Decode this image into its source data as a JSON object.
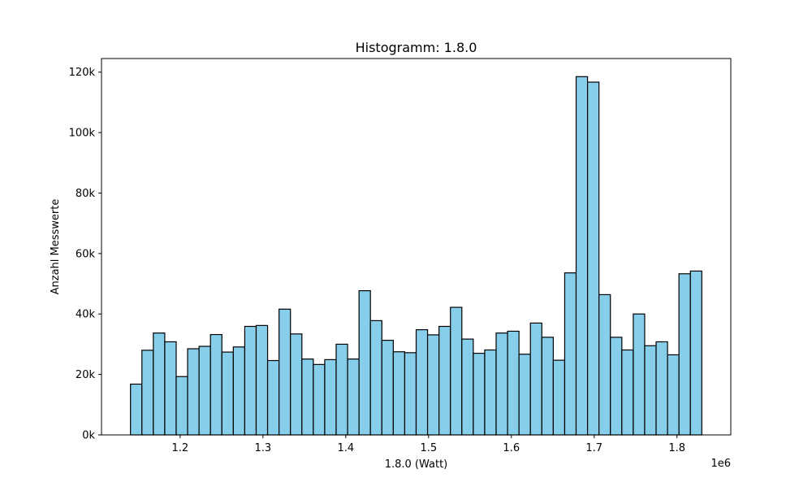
{
  "chart_data": {
    "type": "bar",
    "title": "Histogramm: 1.8.0",
    "xlabel": "1.8.0 (Watt)",
    "ylabel": "Anzahl Messwerte",
    "x_offset_label": "1e6",
    "x_scale": 1000000,
    "xlim": [
      1105000,
      1865000
    ],
    "ylim": [
      0,
      124500
    ],
    "x_ticks": [
      1.2,
      1.3,
      1.4,
      1.5,
      1.6,
      1.7,
      1.8
    ],
    "x_tick_labels": [
      "1.2",
      "1.3",
      "1.4",
      "1.5",
      "1.6",
      "1.7",
      "1.8"
    ],
    "y_ticks": [
      0,
      20000,
      40000,
      60000,
      80000,
      100000,
      120000
    ],
    "y_tick_labels": [
      "0k",
      "20k",
      "40k",
      "60k",
      "80k",
      "100k",
      "120k"
    ],
    "bar_color": "#87ceeb",
    "edge_color": "#000000",
    "grid": false,
    "legend": "none",
    "bin_start": 1140000,
    "bin_width": 13800,
    "values": [
      16800,
      28000,
      33700,
      30800,
      19300,
      28500,
      29300,
      33200,
      27400,
      29100,
      35900,
      36200,
      24600,
      41600,
      33400,
      25100,
      23300,
      24900,
      30000,
      25100,
      47700,
      37800,
      31300,
      27500,
      27200,
      34800,
      33100,
      35900,
      42200,
      31700,
      27000,
      28100,
      33700,
      34300,
      26700,
      37000,
      32300,
      24700,
      53600,
      118500,
      116700,
      46400,
      32300,
      28100,
      40000,
      29500,
      30800,
      26500,
      53300,
      54200
    ]
  }
}
